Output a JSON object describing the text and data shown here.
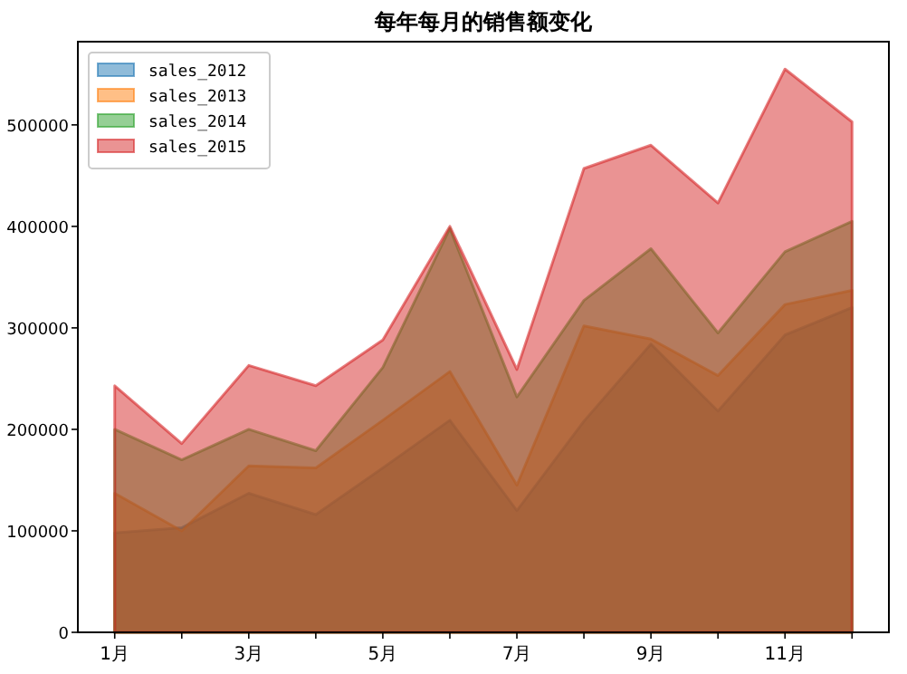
{
  "chart_data": {
    "type": "area",
    "title": "每年每月的销售额变化",
    "x": [
      1,
      2,
      3,
      4,
      5,
      6,
      7,
      8,
      9,
      10,
      11,
      12
    ],
    "xlim": [
      0.45,
      12.55
    ],
    "xticks": [
      {
        "value": 1,
        "label": "1月"
      },
      {
        "value": 2,
        "label": null
      },
      {
        "value": 3,
        "label": "3月"
      },
      {
        "value": 4,
        "label": null
      },
      {
        "value": 5,
        "label": "5月"
      },
      {
        "value": 6,
        "label": null
      },
      {
        "value": 7,
        "label": "7月"
      },
      {
        "value": 8,
        "label": null
      },
      {
        "value": 9,
        "label": "9月"
      },
      {
        "value": 10,
        "label": null
      },
      {
        "value": 11,
        "label": "11月"
      },
      {
        "value": 12,
        "label": null
      }
    ],
    "ylim": [
      0,
      582000
    ],
    "yticks": [
      0,
      100000,
      200000,
      300000,
      400000,
      500000
    ],
    "series": [
      {
        "name": "sales_2012",
        "color": "#1f77b4",
        "values": [
          98000,
          103000,
          137000,
          116000,
          162000,
          209000,
          120000,
          208000,
          284000,
          218000,
          293000,
          320000
        ]
      },
      {
        "name": "sales_2013",
        "color": "#ff7f0e",
        "values": [
          137000,
          100000,
          164000,
          162000,
          209000,
          257000,
          145000,
          302000,
          289000,
          253000,
          323000,
          337000
        ]
      },
      {
        "name": "sales_2014",
        "color": "#2ca02c",
        "values": [
          200000,
          170000,
          200000,
          179000,
          261000,
          398000,
          232000,
          327000,
          378000,
          295000,
          375000,
          405000
        ]
      },
      {
        "name": "sales_2015",
        "color": "#d62728",
        "values": [
          243000,
          186000,
          263000,
          243000,
          288000,
          400000,
          259000,
          457000,
          480000,
          423000,
          555000,
          503000
        ]
      }
    ],
    "legend": "top left"
  }
}
